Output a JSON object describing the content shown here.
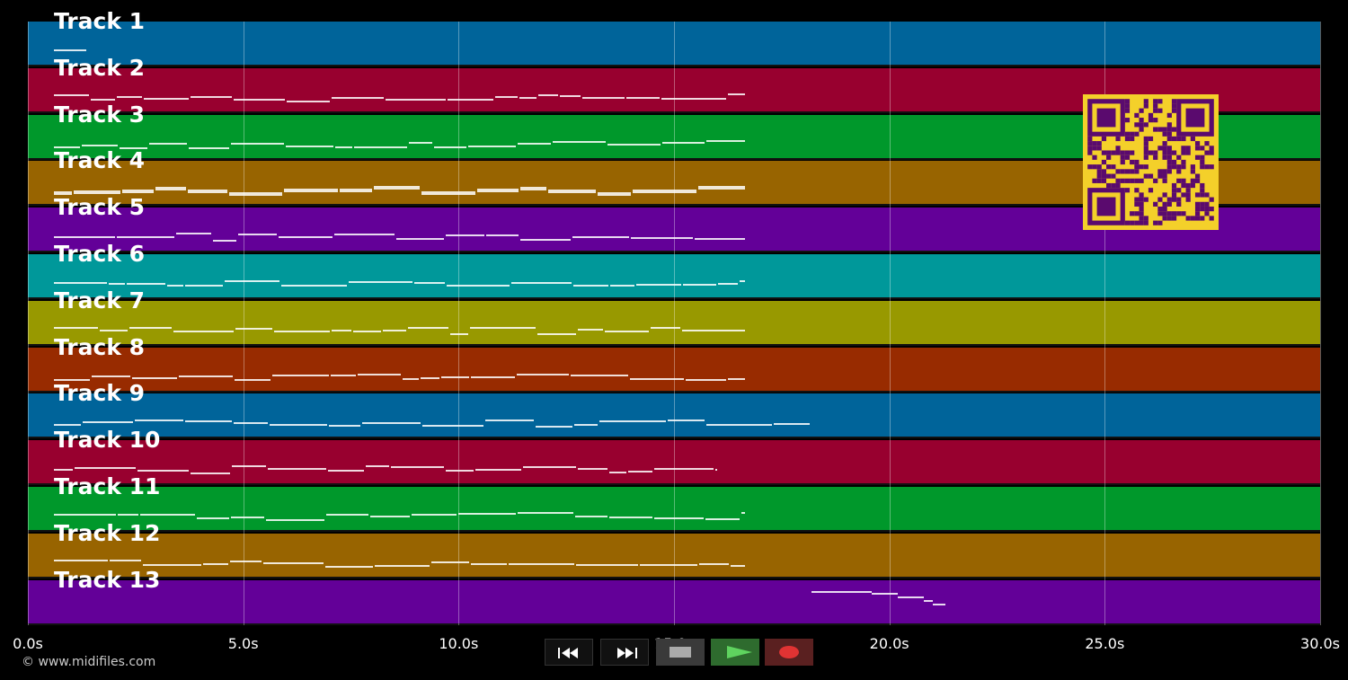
{
  "tracks": [
    {
      "label": "Track 1",
      "color": "#00649a"
    },
    {
      "label": "Track 2",
      "color": "#98002f"
    },
    {
      "label": "Track 3",
      "color": "#00982b"
    },
    {
      "label": "Track 4",
      "color": "#986400"
    },
    {
      "label": "Track 5",
      "color": "#630098"
    },
    {
      "label": "Track 6",
      "color": "#00989a"
    },
    {
      "label": "Track 7",
      "color": "#989900"
    },
    {
      "label": "Track 8",
      "color": "#982b00"
    },
    {
      "label": "Track 9",
      "color": "#00649a"
    },
    {
      "label": "Track 10",
      "color": "#98002f"
    },
    {
      "label": "Track 11",
      "color": "#00982b"
    },
    {
      "label": "Track 12",
      "color": "#986400"
    },
    {
      "label": "Track 13",
      "color": "#630098"
    }
  ],
  "time_axis": {
    "ticks": [
      "0.0s",
      "5.0s",
      "10.0s",
      "15.0s",
      "20.0s",
      "25.0s",
      "30.0s"
    ],
    "range_seconds": [
      0,
      30
    ]
  },
  "copyright": "© www.midifiles.com",
  "transport": {
    "buttons": [
      {
        "name": "rewind-button",
        "icon": "rewind-icon"
      },
      {
        "name": "fast-forward-button",
        "icon": "fast-forward-icon"
      },
      {
        "name": "stop-button",
        "icon": "stop-icon"
      },
      {
        "name": "play-button",
        "icon": "play-icon"
      },
      {
        "name": "record-button",
        "icon": "record-icon"
      }
    ],
    "colors": {
      "panel": "#1b1b1b",
      "stop": "#3a3a3a",
      "play": "#2e6b2e",
      "play_icon": "#5fd35f",
      "record": "#5a2020",
      "record_icon": "#e03333"
    }
  },
  "qr_code": {
    "fg": "#5a0a6e",
    "bg": "#f4d02a"
  }
}
